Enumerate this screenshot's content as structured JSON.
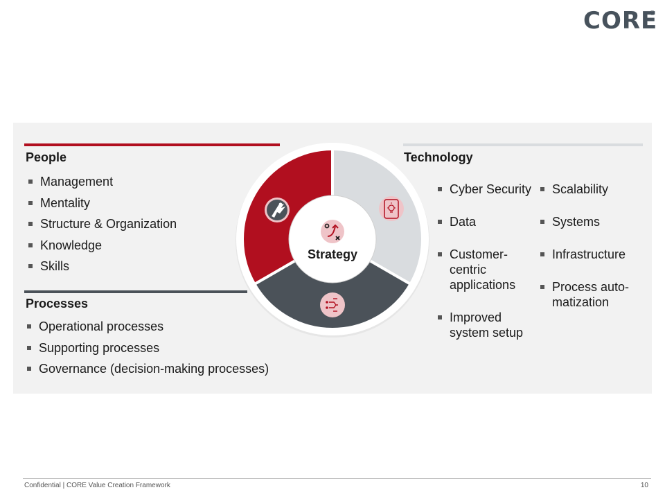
{
  "brand": {
    "logo_text": "CORE",
    "registered_mark": "®"
  },
  "colors": {
    "red": "#b10f1f",
    "dark": "#4b5259",
    "light": "#d9dcdf",
    "panel": "#f2f2f2"
  },
  "diagram": {
    "center_label": "Strategy",
    "segments": [
      {
        "name": "people",
        "color": "#b10f1f",
        "icon": "superhero-icon"
      },
      {
        "name": "technology",
        "color": "#d9dcdf",
        "icon": "lightbulb-tablet-icon"
      },
      {
        "name": "processes",
        "color": "#4b5259",
        "icon": "process-flow-icon"
      }
    ],
    "center_icon": "strategy-path-icon"
  },
  "people": {
    "title": "People",
    "items": [
      "Management",
      "Mentality",
      "Structure & Organization",
      "Knowledge",
      "Skills"
    ]
  },
  "processes": {
    "title": "Processes",
    "items": [
      "Operational processes",
      "Supporting processes",
      "Governance (decision-making processes)"
    ]
  },
  "technology": {
    "title": "Technology",
    "col1": [
      "Cyber Security",
      "Data",
      "Customer-\ncentric\napplications",
      "Improved\nsystem setup"
    ],
    "col2": [
      "Scalability",
      "Systems",
      "Infrastructure",
      "Process auto-\nmatization"
    ]
  },
  "footer": {
    "text": "Confidential | CORE  Value Creation Framework",
    "page": "10"
  }
}
